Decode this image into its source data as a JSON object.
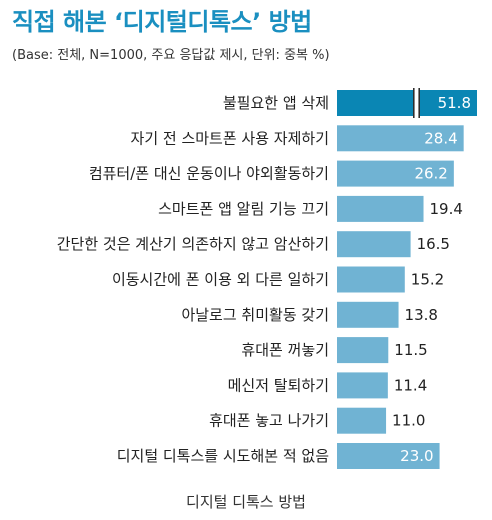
{
  "chart_data": {
    "type": "bar",
    "orientation": "horizontal",
    "title": "직접 해본 ‘디지털디톡스’ 방법",
    "subtitle": "(Base: 전체, N=1000, 주요 응답값 제시, 단위: 중복 %)",
    "xlabel": "디지털 디톡스 방법",
    "ylabel": "",
    "categories": [
      "불필요한 앱 삭제",
      "자기 전 스마트폰 사용 자제하기",
      "컴퓨터/폰 대신 운동이나 야외활동하기",
      "스마트폰 앱 알림 기능 끄기",
      "간단한 것은 계산기 의존하지 않고 암산하기",
      "이동시간에 폰 이용 외 다른 일하기",
      "아날로그 취미활동 갖기",
      "휴대폰 꺼놓기",
      "메신저 탈퇴하기",
      "휴대폰 놓고 나가기",
      "디지털 디톡스를 시도해본 적 없음"
    ],
    "values": [
      51.8,
      28.4,
      26.2,
      19.4,
      16.5,
      15.2,
      13.8,
      11.5,
      11.4,
      11.0,
      23.0
    ],
    "value_labels": [
      "51.8",
      "28.4",
      "26.2",
      "19.4",
      "16.5",
      "15.2",
      "13.8",
      "11.5",
      "11.4",
      "11.0",
      "23.0"
    ],
    "axis_break": true,
    "grid": false,
    "legend": "none",
    "colors": {
      "highlight": "#0a86b4",
      "bar": "#70b3d3",
      "title": "#1a8fc0",
      "label_inside": "#ffffff",
      "label_outside": "#222222"
    }
  }
}
